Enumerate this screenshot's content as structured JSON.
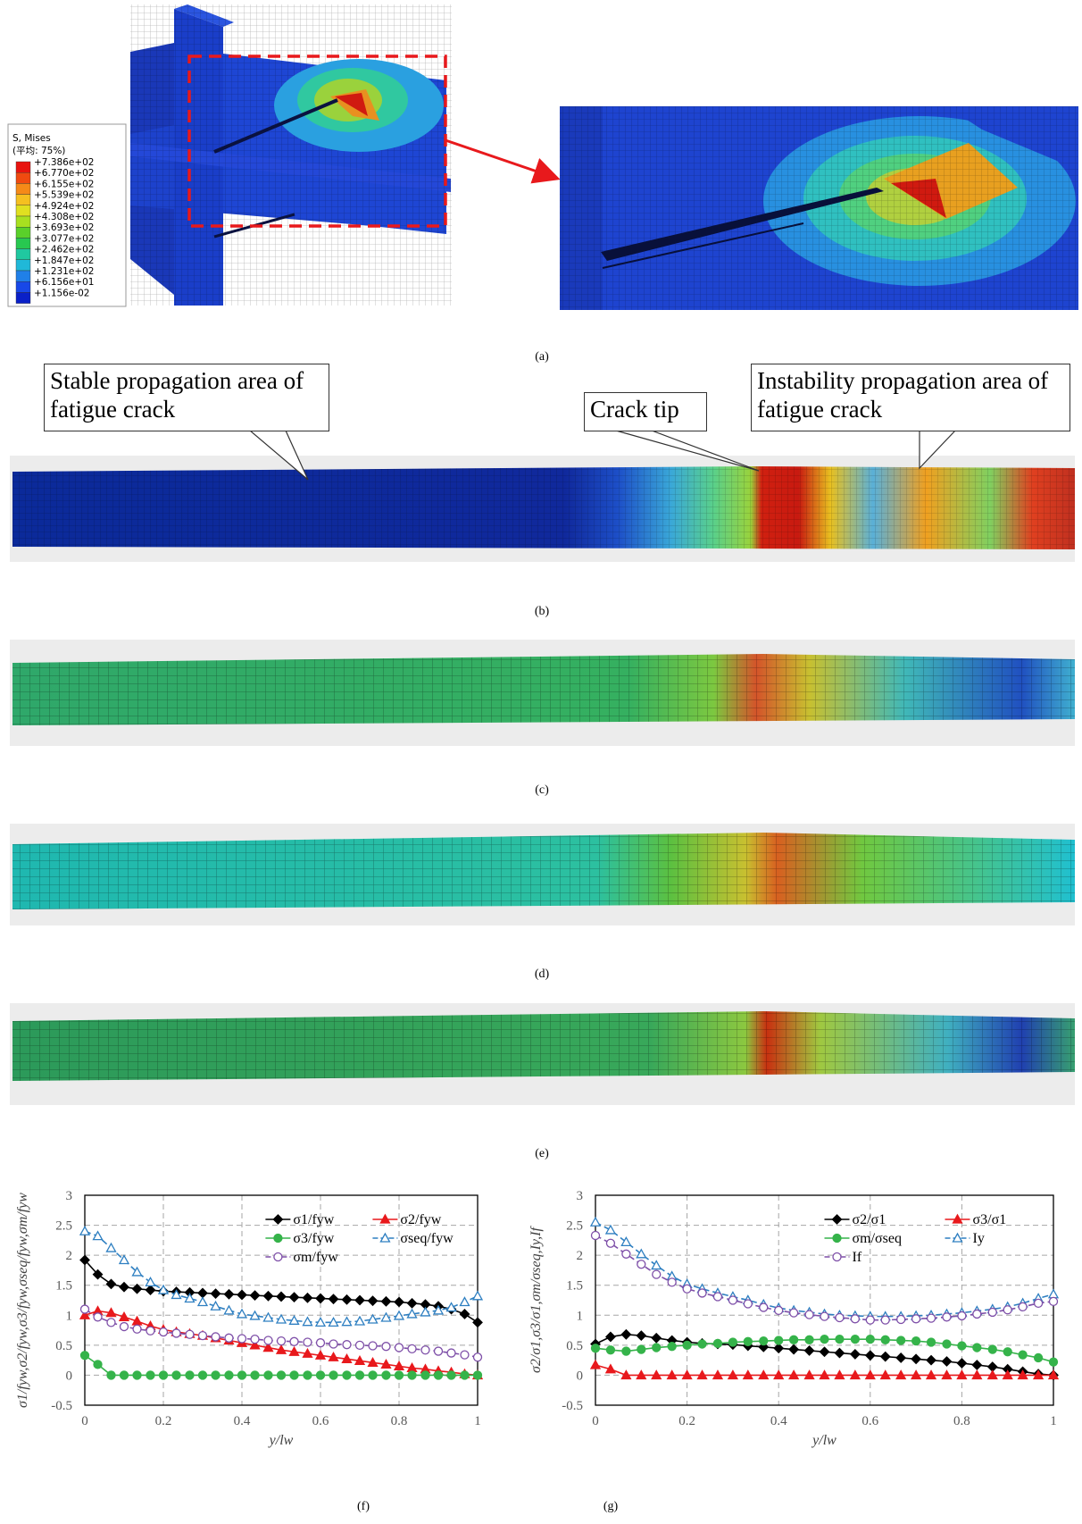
{
  "figure": {
    "labels": [
      "(a)",
      "(b)",
      "(c)",
      "(d)",
      "(e)",
      "(f)",
      "(g)"
    ],
    "legend_title": "S, Mises",
    "legend_subtitle": "(平均: 75%)",
    "legend_values": [
      "+7.386e+02",
      "+6.770e+02",
      "+6.155e+02",
      "+5.539e+02",
      "+4.924e+02",
      "+4.308e+02",
      "+3.693e+02",
      "+3.077e+02",
      "+2.462e+02",
      "+1.847e+02",
      "+1.231e+02",
      "+6.156e+01",
      "+1.156e-02"
    ],
    "annotations": {
      "stable": "Stable propagation area of fatigue crack",
      "crack_tip": "Crack tip",
      "instability": "Instability propagation area of fatigue crack"
    }
  },
  "chart_data": [
    {
      "type": "line",
      "y_label": "σ1/fyw,σ2/fyw,σ3/fyw,σseq/fyw,σm/fyw",
      "x_label": "y/lw",
      "x": [
        0,
        0.033,
        0.067,
        0.1,
        0.133,
        0.167,
        0.2,
        0.233,
        0.267,
        0.3,
        0.333,
        0.367,
        0.4,
        0.433,
        0.467,
        0.5,
        0.533,
        0.567,
        0.6,
        0.633,
        0.667,
        0.7,
        0.733,
        0.767,
        0.8,
        0.833,
        0.867,
        0.9,
        0.933,
        0.967,
        1
      ],
      "xlim": [
        0,
        1
      ],
      "xticks": [
        0,
        0.2,
        0.4,
        0.6,
        0.8,
        1
      ],
      "ylim": [
        -0.5,
        3
      ],
      "yticks": [
        -0.5,
        0,
        0.5,
        1,
        1.5,
        2,
        2.5,
        3
      ],
      "grid": true,
      "series": [
        {
          "name": "σ1/fyw",
          "color": "#000000",
          "marker": "diamond",
          "filled": true,
          "dash": false,
          "values": [
            1.92,
            1.68,
            1.52,
            1.47,
            1.44,
            1.42,
            1.4,
            1.39,
            1.38,
            1.37,
            1.36,
            1.35,
            1.34,
            1.33,
            1.32,
            1.31,
            1.3,
            1.29,
            1.28,
            1.27,
            1.26,
            1.25,
            1.24,
            1.23,
            1.22,
            1.2,
            1.18,
            1.15,
            1.1,
            1.02,
            0.88
          ]
        },
        {
          "name": "σ2/fyw",
          "color": "#e8191c",
          "marker": "triangle",
          "filled": true,
          "dash": false,
          "values": [
            1.0,
            1.07,
            1.04,
            0.97,
            0.9,
            0.82,
            0.76,
            0.72,
            0.69,
            0.66,
            0.62,
            0.58,
            0.54,
            0.5,
            0.46,
            0.42,
            0.39,
            0.36,
            0.33,
            0.3,
            0.27,
            0.24,
            0.21,
            0.18,
            0.15,
            0.12,
            0.1,
            0.07,
            0.05,
            0.02,
            0
          ]
        },
        {
          "name": "σ3/fyw",
          "color": "#35b34a",
          "marker": "circle",
          "filled": true,
          "dash": false,
          "values": [
            0.33,
            0.18,
            0,
            0,
            0,
            0,
            0,
            0,
            0,
            0,
            0,
            0,
            0,
            0,
            0,
            0,
            0,
            0,
            0,
            0,
            0,
            0,
            0,
            0,
            0,
            0,
            0,
            0,
            0,
            0,
            0
          ]
        },
        {
          "name": "σseq/fyw",
          "color": "#2e7fc1",
          "marker": "triangle",
          "filled": false,
          "dash": true,
          "values": [
            2.4,
            2.32,
            2.12,
            1.92,
            1.72,
            1.55,
            1.42,
            1.34,
            1.28,
            1.22,
            1.15,
            1.08,
            1.02,
            0.99,
            0.96,
            0.93,
            0.91,
            0.89,
            0.88,
            0.88,
            0.89,
            0.9,
            0.93,
            0.96,
            0.99,
            1.02,
            1.05,
            1.08,
            1.13,
            1.22,
            1.32
          ]
        },
        {
          "name": "σm/fyw",
          "color": "#7e4fa8",
          "marker": "circle",
          "filled": false,
          "dash": true,
          "values": [
            1.1,
            0.97,
            0.88,
            0.81,
            0.77,
            0.74,
            0.72,
            0.7,
            0.68,
            0.66,
            0.64,
            0.62,
            0.61,
            0.6,
            0.58,
            0.57,
            0.56,
            0.55,
            0.54,
            0.52,
            0.51,
            0.5,
            0.49,
            0.48,
            0.46,
            0.44,
            0.42,
            0.4,
            0.37,
            0.34,
            0.3
          ]
        }
      ]
    },
    {
      "type": "line",
      "y_label": "σ2/σ1,σ3/σ1,σm/σseq,Iy,If",
      "x_label": "y/lw",
      "x": [
        0,
        0.033,
        0.067,
        0.1,
        0.133,
        0.167,
        0.2,
        0.233,
        0.267,
        0.3,
        0.333,
        0.367,
        0.4,
        0.433,
        0.467,
        0.5,
        0.533,
        0.567,
        0.6,
        0.633,
        0.667,
        0.7,
        0.733,
        0.767,
        0.8,
        0.833,
        0.867,
        0.9,
        0.933,
        0.967,
        1
      ],
      "xlim": [
        0,
        1
      ],
      "xticks": [
        0,
        0.2,
        0.4,
        0.6,
        0.8,
        1
      ],
      "ylim": [
        -0.5,
        3
      ],
      "yticks": [
        -0.5,
        0,
        0.5,
        1,
        1.5,
        2,
        2.5,
        3
      ],
      "grid": true,
      "series": [
        {
          "name": "σ2/σ1",
          "color": "#000000",
          "marker": "diamond",
          "filled": true,
          "dash": false,
          "values": [
            0.52,
            0.64,
            0.68,
            0.66,
            0.62,
            0.58,
            0.55,
            0.53,
            0.52,
            0.51,
            0.49,
            0.47,
            0.45,
            0.43,
            0.41,
            0.39,
            0.37,
            0.35,
            0.33,
            0.31,
            0.29,
            0.27,
            0.25,
            0.23,
            0.2,
            0.17,
            0.14,
            0.1,
            0.06,
            0.02,
            0
          ]
        },
        {
          "name": "σ3/σ1",
          "color": "#e8191c",
          "marker": "triangle",
          "filled": true,
          "dash": false,
          "values": [
            0.17,
            0.1,
            0,
            0,
            0,
            0,
            0,
            0,
            0,
            0,
            0,
            0,
            0,
            0,
            0,
            0,
            0,
            0,
            0,
            0,
            0,
            0,
            0,
            0,
            0,
            0,
            0,
            0,
            0,
            0,
            0
          ]
        },
        {
          "name": "σm/σseq",
          "color": "#35b34a",
          "marker": "circle",
          "filled": true,
          "dash": false,
          "values": [
            0.45,
            0.42,
            0.4,
            0.43,
            0.46,
            0.48,
            0.5,
            0.52,
            0.53,
            0.55,
            0.56,
            0.57,
            0.58,
            0.59,
            0.59,
            0.6,
            0.6,
            0.6,
            0.6,
            0.59,
            0.58,
            0.57,
            0.55,
            0.52,
            0.49,
            0.46,
            0.43,
            0.39,
            0.34,
            0.29,
            0.22
          ]
        },
        {
          "name": "Iy",
          "color": "#2e7fc1",
          "marker": "triangle",
          "filled": false,
          "dash": true,
          "values": [
            2.55,
            2.42,
            2.22,
            2.02,
            1.83,
            1.65,
            1.52,
            1.44,
            1.37,
            1.31,
            1.25,
            1.18,
            1.12,
            1.08,
            1.05,
            1.02,
            1.0,
            0.99,
            0.98,
            0.98,
            0.98,
            0.99,
            1.0,
            1.02,
            1.04,
            1.07,
            1.1,
            1.14,
            1.2,
            1.28,
            1.35
          ]
        },
        {
          "name": "If",
          "color": "#7e4fa8",
          "marker": "circle",
          "filled": false,
          "dash": true,
          "values": [
            2.33,
            2.2,
            2.02,
            1.85,
            1.68,
            1.55,
            1.44,
            1.37,
            1.31,
            1.25,
            1.19,
            1.13,
            1.08,
            1.04,
            1.01,
            0.98,
            0.96,
            0.94,
            0.92,
            0.92,
            0.93,
            0.94,
            0.95,
            0.97,
            0.99,
            1.02,
            1.05,
            1.09,
            1.14,
            1.2,
            1.23
          ]
        }
      ]
    }
  ]
}
